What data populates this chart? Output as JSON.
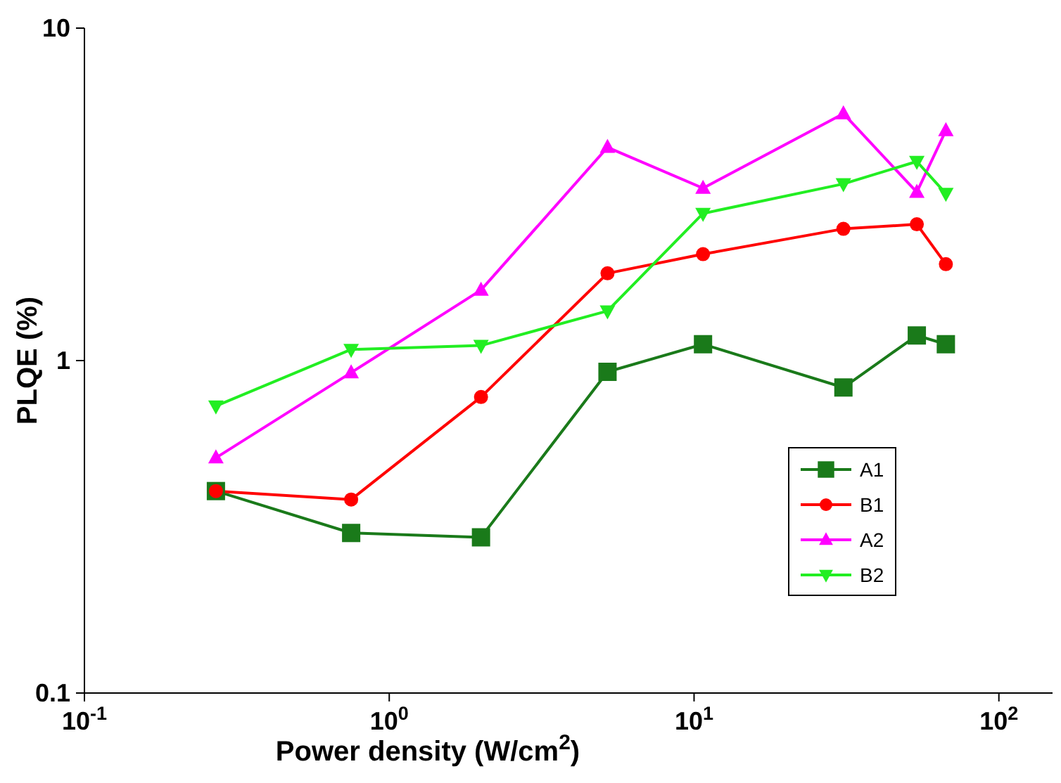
{
  "chart_data": {
    "type": "line",
    "xlabel": "Power density (W/cm$^{2}$)",
    "ylabel": "PLQE (%)",
    "log": "xy",
    "x": [
      0.27,
      0.75,
      2.0,
      5.2,
      10.7,
      30.9,
      53.8,
      67
    ],
    "xlim": [
      0.1,
      150
    ],
    "xticks": [
      {
        "value": 0.1,
        "label": "10$^{-1}$"
      },
      {
        "value": 1,
        "label": "10$^{0}$"
      },
      {
        "value": 10,
        "label": "10$^{1}$"
      },
      {
        "value": 100,
        "label": "10$^{2}$"
      }
    ],
    "ylim": [
      0.1,
      10
    ],
    "yticks": [
      0.1,
      1,
      10
    ],
    "legend": "bottom right",
    "line_style": "solid",
    "series": [
      {
        "name": "A1",
        "color": "#1a7a1a",
        "marker": "square",
        "values": [
          0.405,
          0.303,
          0.294,
          0.925,
          1.12,
          0.83,
          1.19,
          1.12
        ]
      },
      {
        "name": "B1",
        "color": "#ff0000",
        "marker": "circle",
        "values": [
          0.405,
          0.382,
          0.777,
          1.83,
          2.09,
          2.49,
          2.57,
          1.95
        ]
      },
      {
        "name": "A2",
        "color": "#ff00ff",
        "marker": "triangle",
        "values": [
          0.51,
          0.92,
          1.63,
          4.38,
          3.3,
          5.53,
          3.21,
          4.92
        ]
      },
      {
        "name": "B2",
        "color": "#22ee22",
        "marker": "triangle-down",
        "values": [
          0.73,
          1.08,
          1.11,
          1.41,
          2.77,
          3.4,
          3.97,
          3.18
        ]
      }
    ]
  }
}
